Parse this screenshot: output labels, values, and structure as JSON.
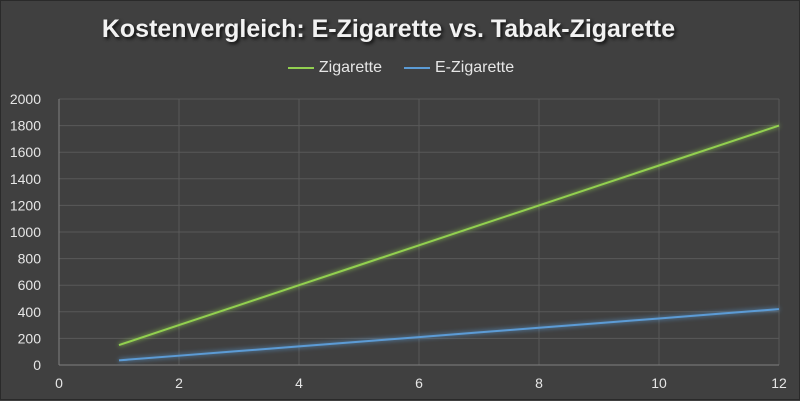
{
  "chart_data": {
    "type": "line",
    "title": "Kostenvergleich: E-Zigarette vs. Tabak-Zigarette",
    "xlabel": "",
    "ylabel": "",
    "xlim": [
      0,
      12
    ],
    "ylim": [
      0,
      2000
    ],
    "x_ticks": [
      0,
      2,
      4,
      6,
      8,
      10,
      12
    ],
    "y_ticks": [
      0,
      200,
      400,
      600,
      800,
      1000,
      1200,
      1400,
      1600,
      1800,
      2000
    ],
    "grid": true,
    "legend_position": "top",
    "x": [
      1,
      2,
      3,
      4,
      5,
      6,
      7,
      8,
      9,
      10,
      11,
      12
    ],
    "series": [
      {
        "name": "Zigarette",
        "color": "#92d050",
        "values": [
          150,
          300,
          450,
          600,
          750,
          900,
          1050,
          1200,
          1350,
          1500,
          1650,
          1800
        ]
      },
      {
        "name": "E-Zigarette",
        "color": "#5b9bd5",
        "values": [
          35,
          70,
          105,
          140,
          175,
          210,
          245,
          280,
          315,
          350,
          385,
          420
        ]
      }
    ],
    "colors": {
      "background": "#404040",
      "gridline": "#595959",
      "axis": "#7f7f7f",
      "text": "#e6e6e6"
    }
  }
}
